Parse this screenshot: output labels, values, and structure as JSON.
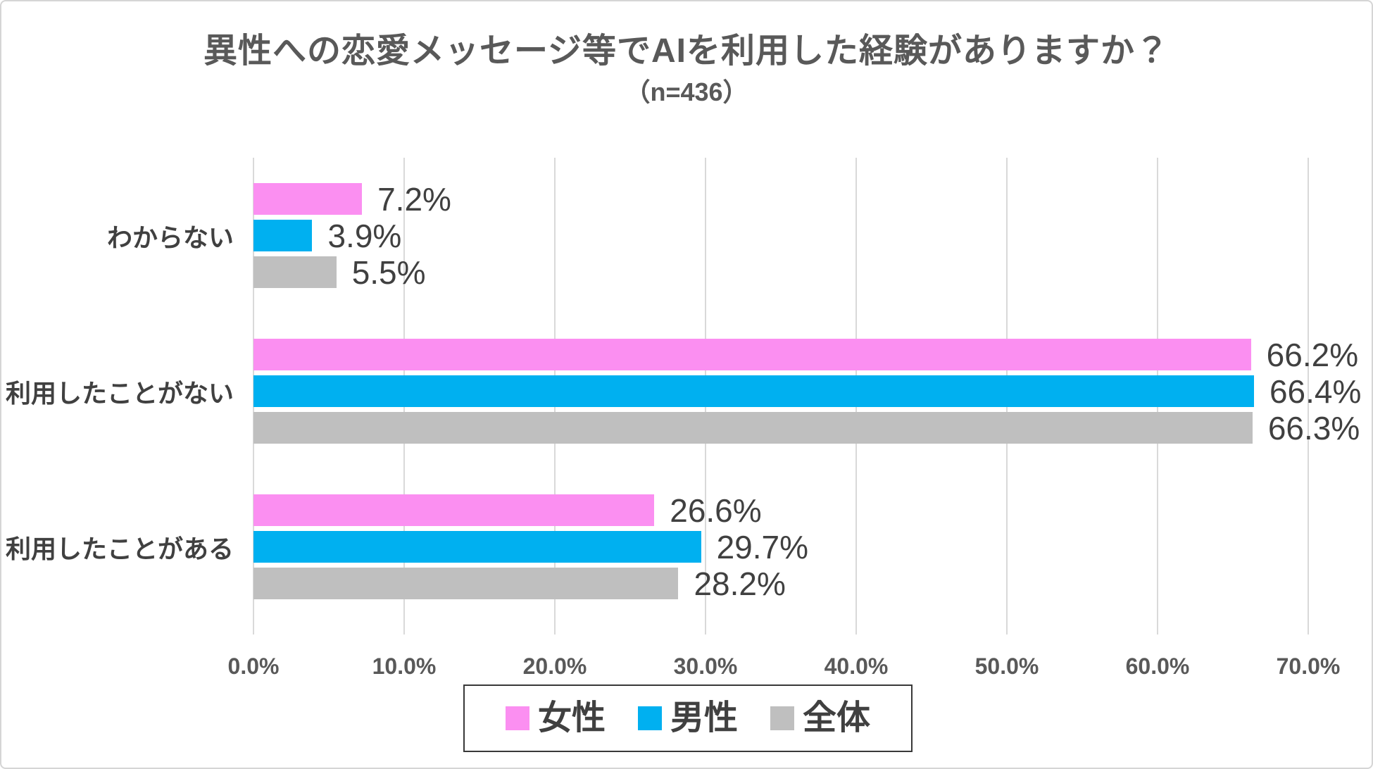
{
  "frame": {
    "background": "#ffffff",
    "border_color": "#d5d5d5"
  },
  "chart_data": {
    "type": "bar",
    "orientation": "horizontal",
    "title": "異性への恋愛メッセージ等でAIを利用した経験がありますか？",
    "subtitle": "（n=436）",
    "categories": [
      "わからない",
      "利用したことがない",
      "利用したことがある"
    ],
    "series": [
      {
        "key": "female",
        "name": "女性",
        "color": "#fb8ff1",
        "values": [
          7.2,
          66.2,
          26.6
        ],
        "labels": [
          "7.2%",
          "66.2%",
          "26.6%"
        ]
      },
      {
        "key": "male",
        "name": "男性",
        "color": "#00b0f0",
        "values": [
          3.9,
          66.4,
          29.7
        ],
        "labels": [
          "3.9%",
          "66.4%",
          "29.7%"
        ]
      },
      {
        "key": "total",
        "name": "全体",
        "color": "#bfbfbf",
        "values": [
          5.5,
          66.3,
          28.2
        ],
        "labels": [
          "5.5%",
          "66.3%",
          "28.2%"
        ]
      }
    ],
    "xlim": [
      0,
      70
    ],
    "xticks": [
      {
        "value": 0,
        "label": "0.0%"
      },
      {
        "value": 10,
        "label": "10.0%"
      },
      {
        "value": 20,
        "label": "20.0%"
      },
      {
        "value": 30,
        "label": "30.0%"
      },
      {
        "value": 40,
        "label": "40.0%"
      },
      {
        "value": 50,
        "label": "50.0%"
      },
      {
        "value": 60,
        "label": "60.0%"
      },
      {
        "value": 70,
        "label": "70.0%"
      }
    ],
    "grid": true,
    "gridline_color": "#d9d9d9",
    "legend_position": "bottom",
    "text_colors": {
      "title": "#595959",
      "category": "#404040",
      "value": "#404040",
      "tick": "#595959",
      "legend": "#404040"
    }
  }
}
